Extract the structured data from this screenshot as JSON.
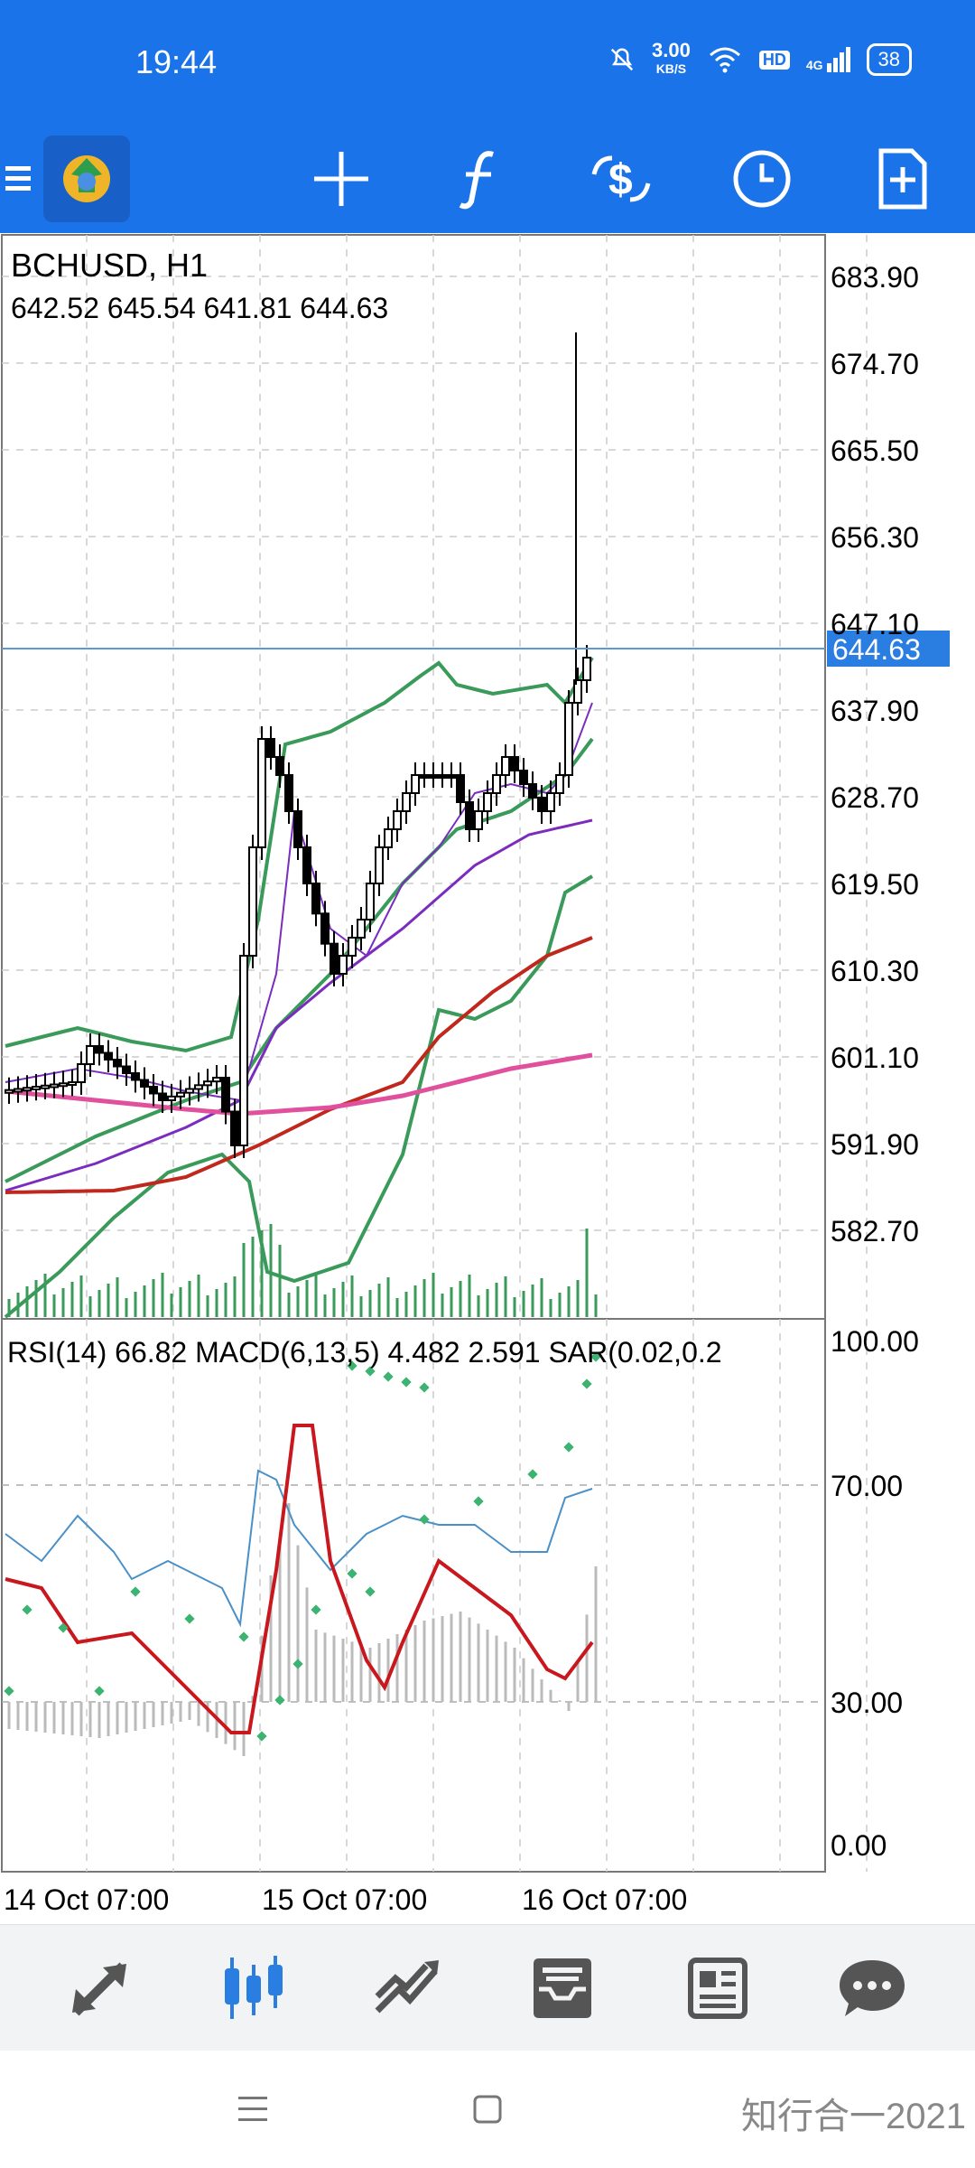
{
  "status_bar": {
    "time": "19:44",
    "net_speed_value": "3.00",
    "net_speed_unit": "KB/S",
    "hd_label": "HD",
    "signal_label": "4G",
    "battery": "38"
  },
  "toolbar": {
    "icons": [
      "menu-icon",
      "app-logo",
      "crosshair-icon",
      "indicators-icon",
      "symbols-icon",
      "timeframe-clock-icon",
      "new-order-icon"
    ]
  },
  "chart": {
    "symbol_line": "BCHUSD, H1",
    "ohlc_line": "642.52 645.54 641.81 644.63",
    "current_price": "644.63",
    "price_ticks": [
      "683.90",
      "674.70",
      "665.50",
      "656.30",
      "647.10",
      "637.90",
      "628.70",
      "619.50",
      "610.30",
      "601.10",
      "591.90",
      "582.70"
    ],
    "indicator_line": "RSI(14) 66.82 MACD(6,13,5) 4.482 2.591 SAR(0.02,0.2",
    "indicator_ticks": [
      "100.00",
      "70.00",
      "30.00",
      "0.00"
    ],
    "date_labels": [
      "14 Oct 07:00",
      "15 Oct 07:00",
      "16 Oct 07:00"
    ],
    "colors": {
      "bollinger": "#3a9a5a",
      "ma_fast": "#7b2cbf",
      "ma_slow": "#c0281e",
      "ma_long": "#e0509c",
      "rsi": "#4a90c8",
      "macd_signal": "#c8181e",
      "sar": "#3cb371",
      "volume": "#3a9a5a",
      "price_line": "#5b9bd5",
      "price_tag": "#2a7de1"
    }
  },
  "bottom_nav": {
    "items": [
      "quotes-icon",
      "chart-icon",
      "trade-icon",
      "history-icon",
      "news-icon",
      "messages-icon"
    ],
    "active": "chart-icon"
  },
  "watermark": "知行合一2021"
}
